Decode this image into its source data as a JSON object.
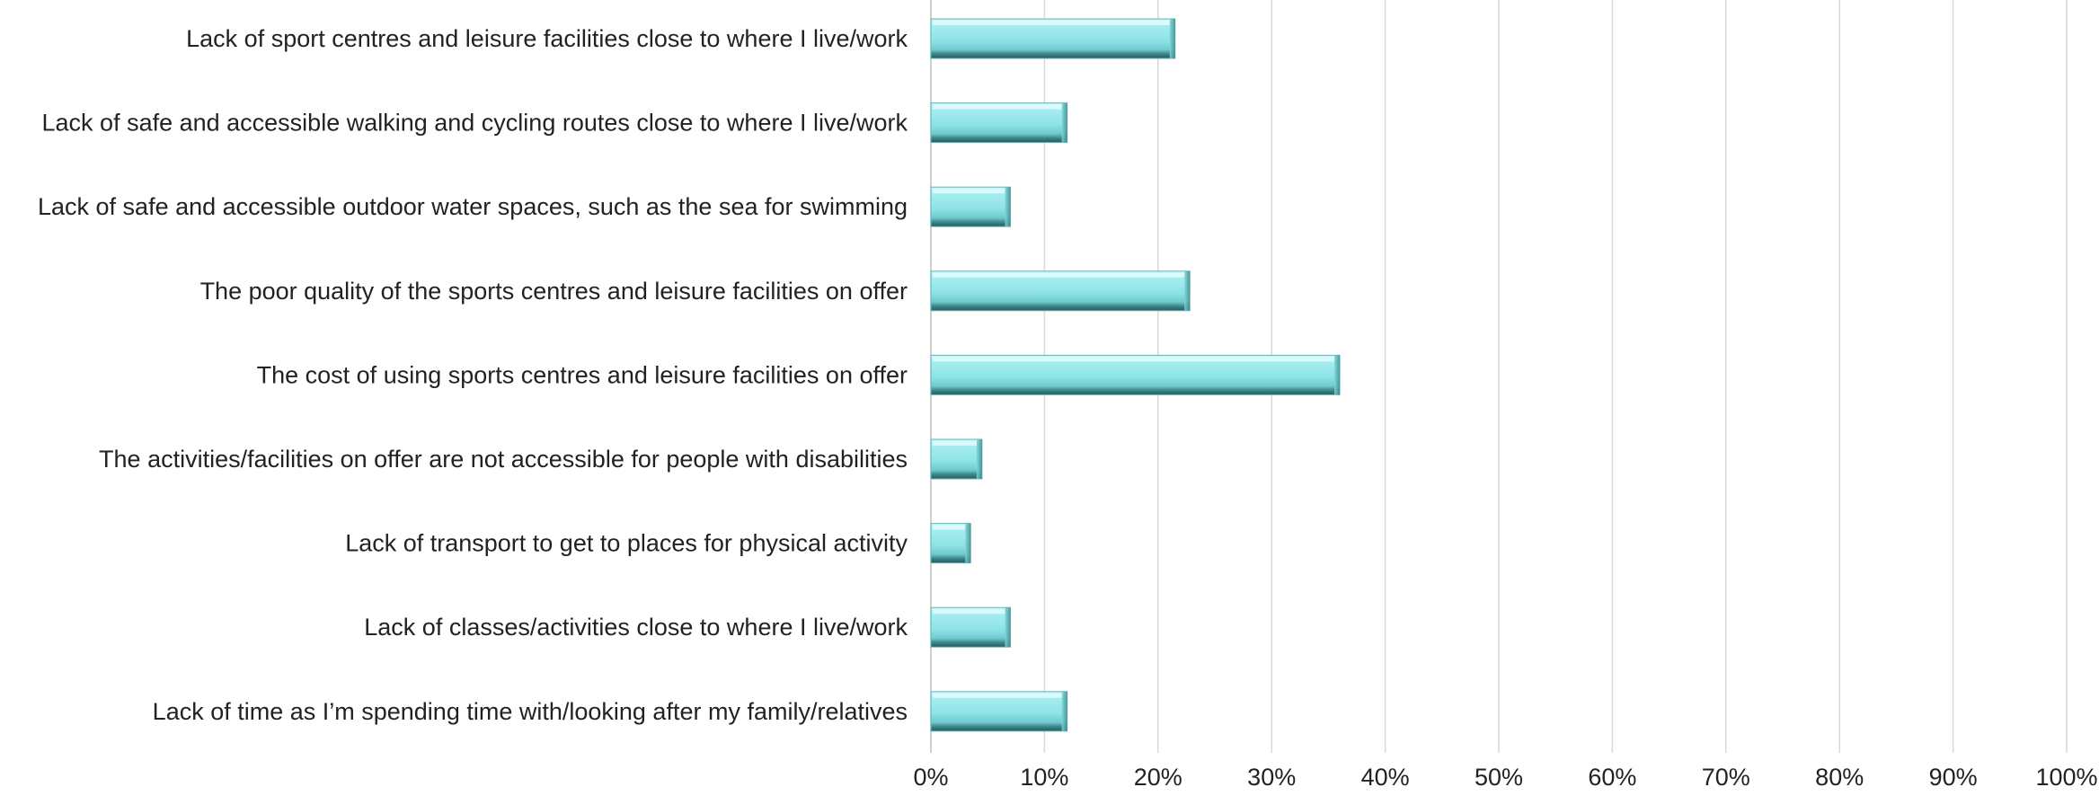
{
  "chart_data": {
    "type": "bar",
    "orientation": "horizontal",
    "categories": [
      "Lack of sport centres and leisure facilities close to where I live/work",
      "Lack of safe and accessible walking and cycling routes close to where I live/work",
      "Lack of safe and accessible outdoor water spaces, such as the sea for swimming",
      "The poor quality of the sports centres and leisure facilities on offer",
      "The cost of using sports centres and leisure facilities on offer",
      "The activities/facilities on offer are not accessible for people with disabilities",
      "Lack of transport to get to places for physical activity",
      "Lack of classes/activities close to where I live/work",
      "Lack of time as I’m spending time with/looking after my family/relatives"
    ],
    "values": [
      21.5,
      12,
      7,
      22.8,
      36,
      4.5,
      3.5,
      7,
      12
    ],
    "value_unit": "%",
    "xlim": [
      0,
      100
    ],
    "x_ticks": [
      "0%",
      "10%",
      "20%",
      "30%",
      "40%",
      "50%",
      "60%",
      "70%",
      "80%",
      "90%",
      "100%"
    ],
    "grid": "vertical",
    "bar_color": "#8ee3e6",
    "bar_shadow_color": "#2e6b6e",
    "gridline_color": "#d9d9d9",
    "title": "",
    "xlabel": "",
    "ylabel": ""
  }
}
